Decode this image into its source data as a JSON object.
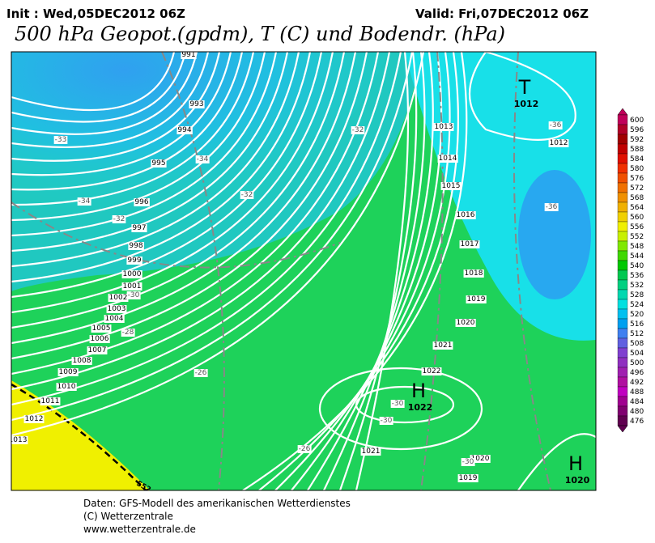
{
  "header": {
    "init": "Init : Wed,05DEC2012 06Z",
    "valid": "Valid: Fri,07DEC2012 06Z",
    "title": "500 hPa Geopot.(gpdm), T (C) und Bodendr. (hPa)"
  },
  "isobar_labels": [
    "991",
    "993",
    "994",
    "995",
    "996",
    "997",
    "998",
    "999",
    "1000",
    "1001",
    "1002",
    "1003",
    "1004",
    "1005",
    "1006",
    "1007",
    "1008",
    "1009",
    "1010",
    "1011",
    "1012",
    "1013",
    "1013",
    "1014",
    "1015",
    "1016",
    "1017",
    "1018",
    "1019",
    "1020",
    "1021",
    "1022",
    "1012",
    "1021",
    "1020",
    "1019"
  ],
  "temperature_labels": [
    "-33",
    "-34",
    "-34",
    "-32",
    "-32",
    "-32",
    "-36",
    "-36",
    "-30",
    "-28",
    "-26",
    "-30",
    "-30",
    "-26",
    "-30"
  ],
  "geopotential_label": "552",
  "pressure_centers": [
    {
      "symbol": "T",
      "value": "1012"
    },
    {
      "symbol": "H",
      "value": "1022"
    },
    {
      "symbol": "H",
      "value": "1020"
    }
  ],
  "colorbar": {
    "values": [
      600,
      596,
      592,
      588,
      584,
      580,
      576,
      572,
      568,
      564,
      560,
      556,
      552,
      548,
      544,
      540,
      536,
      532,
      528,
      524,
      520,
      516,
      512,
      508,
      504,
      500,
      496,
      492,
      488,
      484,
      480,
      476
    ],
    "colors": [
      "#c0005a",
      "#b00028",
      "#a00000",
      "#c00000",
      "#e01000",
      "#f03000",
      "#f05000",
      "#f07000",
      "#f09000",
      "#f0b000",
      "#f0d000",
      "#f0f000",
      "#c8f000",
      "#80e800",
      "#40d800",
      "#00c800",
      "#00c850",
      "#00d080",
      "#00d8b0",
      "#00e0e0",
      "#00c0f0",
      "#00a0f0",
      "#4080f0",
      "#6060e0",
      "#8040d0",
      "#9030c0",
      "#a020b0",
      "#b010a0",
      "#c000c0",
      "#a00090",
      "#800070",
      "#600050"
    ]
  },
  "footer": [
    "Daten: GFS-Modell des amerikanischen Wetterdienstes",
    "(C) Wetterzentrale",
    "www.wetterzentrale.de"
  ]
}
